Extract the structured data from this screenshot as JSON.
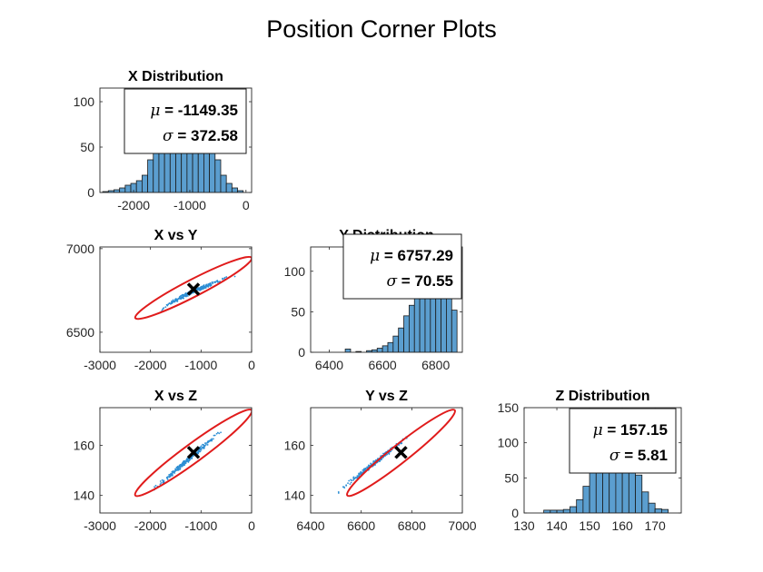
{
  "figure": {
    "title": "Position Corner Plots",
    "colors": {
      "bar_fill": "#5b9ecf",
      "bar_edge": "#1a1a1a",
      "scatter": "#2e8fd4",
      "ellipse": "#e01b1b",
      "mean_marker": "#000000",
      "axes": "#262626"
    }
  },
  "chart_data": [
    {
      "id": "x_hist",
      "type": "bar",
      "title": "X Distribution",
      "xlim": [
        -2600,
        100
      ],
      "ylim": [
        0,
        115
      ],
      "xticks": [
        -2000,
        -1000,
        0
      ],
      "xticklabels": [
        "-2000",
        "-1000",
        "0"
      ],
      "yticks": [
        0,
        50,
        100
      ],
      "yticklabels": [
        "0",
        "50",
        "100"
      ],
      "bin_edges": [
        -2550,
        -2450,
        -2350,
        -2250,
        -2150,
        -2050,
        -1950,
        -1850,
        -1750,
        -1650,
        -1550,
        -1450,
        -1350,
        -1250,
        -1150,
        -1050,
        -950,
        -850,
        -750,
        -650,
        -550,
        -450,
        -350,
        -250,
        -150,
        -50
      ],
      "counts": [
        1,
        2,
        3,
        5,
        8,
        10,
        13,
        19,
        36,
        55,
        78,
        97,
        108,
        112,
        112,
        110,
        105,
        95,
        78,
        57,
        36,
        19,
        10,
        5,
        2
      ],
      "stats": {
        "mu": "-1149.35",
        "sigma": "372.58"
      }
    },
    {
      "id": "y_hist",
      "type": "bar",
      "title": "Y Distribution",
      "xlim": [
        6330,
        6900
      ],
      "ylim": [
        0,
        130
      ],
      "xticks": [
        6400,
        6600,
        6800
      ],
      "xticklabels": [
        "6400",
        "6600",
        "6800"
      ],
      "yticks": [
        0,
        50,
        100
      ],
      "yticklabels": [
        "0",
        "50",
        "100"
      ],
      "bin_edges": [
        6400,
        6420,
        6440,
        6460,
        6480,
        6500,
        6520,
        6540,
        6560,
        6580,
        6600,
        6620,
        6640,
        6660,
        6680,
        6700,
        6720,
        6740,
        6760,
        6780,
        6800,
        6820,
        6840,
        6860,
        6880
      ],
      "counts": [
        0,
        0,
        0,
        4,
        0,
        1,
        0,
        2,
        3,
        5,
        8,
        12,
        20,
        30,
        45,
        58,
        74,
        90,
        106,
        115,
        120,
        110,
        88,
        52,
        28
      ],
      "stats": {
        "mu": "6757.29",
        "sigma": "70.55"
      }
    },
    {
      "id": "z_hist",
      "type": "bar",
      "title": "Z Distribution",
      "xlim": [
        130,
        178
      ],
      "ylim": [
        0,
        150
      ],
      "xticks": [
        130,
        140,
        150,
        160,
        170
      ],
      "xticklabels": [
        "130",
        "140",
        "150",
        "160",
        "170"
      ],
      "yticks": [
        0,
        50,
        100,
        150
      ],
      "yticklabels": [
        "0",
        "50",
        "100",
        "150"
      ],
      "bin_edges": [
        136,
        138,
        140,
        142,
        144,
        146,
        148,
        150,
        152,
        154,
        156,
        158,
        160,
        162,
        164,
        166,
        168,
        170,
        172,
        174
      ],
      "counts": [
        4,
        4,
        4,
        5,
        9,
        19,
        38,
        78,
        108,
        128,
        132,
        133,
        126,
        100,
        54,
        30,
        14,
        6,
        5
      ],
      "stats": {
        "mu": "157.15",
        "sigma": "5.81"
      }
    },
    {
      "id": "x_vs_y",
      "type": "scatter",
      "title": "X vs Y",
      "xlim": [
        -3000,
        0
      ],
      "ylim": [
        6380,
        7010
      ],
      "xticks": [
        -3000,
        -2000,
        -1000,
        0
      ],
      "xticklabels": [
        "-3000",
        "-2000",
        "-1000",
        "0"
      ],
      "yticks": [
        6500,
        7000
      ],
      "yticklabels": [
        "6500",
        "7000"
      ],
      "ellipse": {
        "x": [
          -2300,
          0
        ],
        "y": [
          6585,
          6945
        ]
      },
      "mean": {
        "x": -1149.35,
        "y": 6757.29
      },
      "points": {
        "x_range": [
          -2300,
          0
        ],
        "y_range": [
          6425,
          6875
        ],
        "shape": "curved-band"
      }
    },
    {
      "id": "x_vs_z",
      "type": "scatter",
      "title": "X vs Z",
      "xlim": [
        -3000,
        0
      ],
      "ylim": [
        133,
        175
      ],
      "xticks": [
        -3000,
        -2000,
        -1000,
        0
      ],
      "xticklabels": [
        "-3000",
        "-2000",
        "-1000",
        "0"
      ],
      "yticks": [
        140,
        160
      ],
      "yticklabels": [
        "140",
        "160"
      ],
      "ellipse": {
        "x": [
          -2300,
          0
        ],
        "y": [
          140,
          174
        ]
      },
      "mean": {
        "x": -1149.35,
        "y": 157.15
      },
      "points": {
        "x_range": [
          -2300,
          -300
        ],
        "y_range": [
          136,
          171
        ],
        "shape": "linear-band"
      }
    },
    {
      "id": "y_vs_z",
      "type": "scatter",
      "title": "Y vs Z",
      "xlim": [
        6400,
        7000
      ],
      "ylim": [
        133,
        175
      ],
      "xticks": [
        6400,
        6600,
        6800,
        7000
      ],
      "xticklabels": [
        "6400",
        "6600",
        "6800",
        "7000"
      ],
      "yticks": [
        140,
        160
      ],
      "yticklabels": [
        "140",
        "160"
      ],
      "ellipse": {
        "x": [
          6545,
          6970
        ],
        "y": [
          140,
          174
        ]
      },
      "mean": {
        "x": 6757.29,
        "y": 157.15
      },
      "points": {
        "x_range": [
          6440,
          6880
        ],
        "y_range": [
          136,
          171
        ],
        "shape": "linear-band"
      }
    }
  ]
}
